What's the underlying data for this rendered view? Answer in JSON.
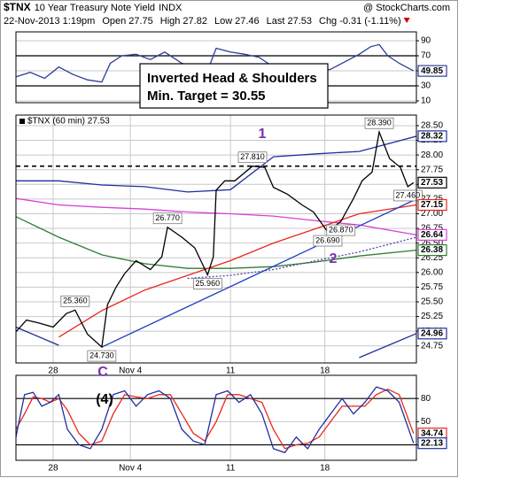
{
  "header": {
    "symbol": "$TNX",
    "name": "10 Year Treasury Note Yield",
    "exchange": "INDX",
    "datetime": "22-Nov-2013 1:19pm",
    "fields": [
      {
        "label": "Open",
        "value": 27.75
      },
      {
        "label": "High",
        "value": 27.82
      },
      {
        "label": "Low",
        "value": 27.46
      },
      {
        "label": "Last",
        "value": 27.53
      },
      {
        "label": "Chg",
        "value": -0.31
      }
    ],
    "change_pct": "(-1.11%)",
    "watermark": "@ StockCharts.com"
  },
  "callout": [
    "Inverted Head & Shoulders",
    "Min. Target = 30.55"
  ],
  "wave_labels": [
    "1",
    "2",
    "(4)",
    "C"
  ],
  "chart_data": [
    {
      "type": "line",
      "xlim": [
        0,
        140
      ],
      "ylim": [
        7.6,
        101.8
      ],
      "yticks": [
        90,
        70,
        50,
        30,
        10
      ],
      "band": [
        30,
        70
      ],
      "grid": true,
      "series": [
        {
          "color": "#2a3f9a",
          "x": [
            0,
            5,
            10,
            15,
            20,
            25,
            30,
            33,
            37,
            42,
            47,
            52,
            58,
            63,
            67,
            70,
            75,
            80,
            85,
            90,
            95,
            100,
            105,
            110,
            115,
            120,
            124,
            127,
            130,
            134,
            139
          ],
          "values": [
            42,
            48,
            40,
            55,
            45,
            38,
            35,
            60,
            70,
            72,
            65,
            75,
            60,
            55,
            50,
            80,
            75,
            72,
            68,
            55,
            50,
            45,
            48,
            52,
            62,
            72,
            82,
            85,
            70,
            60,
            49.85
          ]
        }
      ],
      "last_values": [
        {
          "value": 49.85,
          "color": "#2a3f9a"
        }
      ]
    },
    {
      "type": "line",
      "title": "$TNX (60 min) 27.53",
      "xlim": [
        0,
        140
      ],
      "ylim": [
        24.46,
        28.68
      ],
      "grid": true,
      "xticks": [
        {
          "value": 13,
          "label": "28"
        },
        {
          "value": 40,
          "label": "Nov 4"
        },
        {
          "value": 75,
          "label": "11"
        },
        {
          "value": 108,
          "label": "18"
        }
      ],
      "yticks": [
        {
          "value": 24.75,
          "label": "24.75"
        },
        {
          "value": 25,
          "label": "25.00"
        },
        {
          "value": 25.25,
          "label": "25.25"
        },
        {
          "value": 25.5,
          "label": "25.50"
        },
        {
          "value": 25.75,
          "label": "25.75"
        },
        {
          "value": 26,
          "label": "26.00"
        },
        {
          "value": 26.25,
          "label": "26.25"
        },
        {
          "value": 26.5,
          "label": "26.50"
        },
        {
          "value": 26.75,
          "label": "26.75"
        },
        {
          "value": 27,
          "label": "27.00"
        },
        {
          "value": 27.25,
          "label": "27.25"
        },
        {
          "value": 27.5,
          "label": "27.50"
        },
        {
          "value": 27.75,
          "label": "27.75"
        },
        {
          "value": 28,
          "label": "28.00"
        },
        {
          "value": 28.25,
          "label": "28.25"
        },
        {
          "value": 28.5,
          "label": "28.50"
        }
      ],
      "series": [
        {
          "color": "#1f2f9f",
          "x": [
            0,
            15,
            30,
            45,
            60,
            75,
            90,
            105,
            120,
            140
          ],
          "values": [
            27.56,
            27.56,
            27.49,
            27.46,
            27.37,
            27.41,
            27.97,
            28.02,
            28.06,
            28.32
          ]
        },
        {
          "color": "#1f2f9f",
          "x": [
            0,
            15,
            30,
            45,
            60,
            75,
            90,
            105,
            120,
            140
          ],
          "values": [
            25.07,
            24.76,
            null,
            null,
            null,
            null,
            null,
            null,
            24.55,
            24.96
          ]
        },
        {
          "color": "#d83fd8",
          "x": [
            0,
            15,
            30,
            45,
            60,
            75,
            90,
            105,
            120,
            140
          ],
          "values": [
            27.26,
            27.15,
            27.11,
            27.08,
            27.03,
            27.0,
            26.96,
            26.88,
            26.81,
            26.64
          ]
        },
        {
          "color": "#2e7d32",
          "x": [
            0,
            15,
            30,
            45,
            60,
            75,
            90,
            105,
            120,
            140
          ],
          "values": [
            26.95,
            26.6,
            26.3,
            26.15,
            26.07,
            26.07,
            26.1,
            26.18,
            26.28,
            26.38
          ]
        },
        {
          "color": "#e8281e",
          "x": [
            0,
            15,
            30,
            45,
            60,
            75,
            90,
            105,
            120,
            140
          ],
          "values": [
            null,
            24.9,
            25.35,
            25.7,
            25.95,
            26.2,
            26.5,
            26.75,
            27.0,
            27.15
          ]
        },
        {
          "color": "#5a3fb0",
          "dashed": true,
          "x": [
            60,
            75,
            90,
            105,
            120,
            140
          ],
          "values": [
            25.9,
            25.95,
            26.05,
            26.2,
            26.35,
            26.6
          ]
        },
        {
          "color": "#2040c0",
          "x": [
            30,
            140
          ],
          "values": [
            24.73,
            27.25
          ]
        },
        {
          "color": "#000000",
          "x": [
            0,
            3.7,
            8,
            13,
            17.6,
            20.7,
            25,
            30,
            32,
            35,
            38,
            42,
            47,
            51,
            53,
            58,
            62.5,
            67,
            69,
            70,
            73,
            76.5,
            82.7,
            87,
            90,
            95,
            100,
            104,
            109,
            113.6,
            118,
            121,
            124.5,
            127,
            130.6,
            134.4,
            137,
            139
          ],
          "values": [
            24.99,
            25.19,
            25.14,
            25.07,
            25.3,
            25.36,
            24.95,
            24.73,
            25.45,
            25.75,
            25.98,
            26.2,
            26.05,
            26.27,
            26.77,
            26.6,
            26.42,
            25.96,
            26.27,
            27.4,
            27.56,
            27.56,
            27.81,
            27.79,
            27.45,
            27.33,
            27.15,
            27.03,
            26.69,
            26.87,
            27.26,
            27.56,
            27.71,
            28.39,
            27.94,
            27.79,
            27.46,
            27.53
          ]
        }
      ],
      "hlines": [
        {
          "value": 27.81,
          "color": "#000000"
        }
      ],
      "annotations": [
        {
          "x": 20.7,
          "value": 25.36,
          "label": "25.360"
        },
        {
          "x": 30,
          "value": 24.73,
          "label": "24.730"
        },
        {
          "x": 53,
          "value": 26.77,
          "label": "26.770"
        },
        {
          "x": 67,
          "value": 25.96,
          "label": "25.960"
        },
        {
          "x": 82.7,
          "value": 27.81,
          "label": "27.810"
        },
        {
          "x": 109,
          "value": 26.69,
          "label": "26.690"
        },
        {
          "x": 113.6,
          "value": 26.87,
          "label": "26.870"
        },
        {
          "x": 127,
          "value": 28.39,
          "label": "28.390"
        },
        {
          "x": 137,
          "value": 27.46,
          "label": "27.460"
        }
      ],
      "last_values": [
        {
          "value": 28.32,
          "color": "#1f2f9f"
        },
        {
          "value": 27.53,
          "color": "#000000"
        },
        {
          "value": 27.15,
          "color": "#e8281e"
        },
        {
          "value": 26.64,
          "color": "#d83fd8"
        },
        {
          "value": 26.38,
          "color": "#2e7d32"
        },
        {
          "value": 24.96,
          "color": "#1f2f9f"
        }
      ]
    },
    {
      "type": "line",
      "xlim": [
        0,
        140
      ],
      "ylim": [
        0,
        110
      ],
      "yticks": [
        20,
        50,
        80
      ],
      "band": [
        20,
        80
      ],
      "grid": true,
      "xticks": [
        {
          "value": 13,
          "label": "28"
        },
        {
          "value": 40,
          "label": "Nov 4"
        },
        {
          "value": 75,
          "label": "11"
        },
        {
          "value": 108,
          "label": "18"
        }
      ],
      "series": [
        {
          "color": "#e8281e",
          "x": [
            0,
            3,
            6,
            9,
            12,
            15,
            18,
            22,
            26,
            30,
            34,
            38,
            42,
            46,
            50,
            54,
            58,
            62,
            66,
            70,
            74,
            78,
            82,
            86,
            90,
            94,
            98,
            102,
            106,
            110,
            114,
            118,
            122,
            126,
            130,
            134,
            139
          ],
          "values": [
            40,
            60,
            82,
            80,
            75,
            80,
            65,
            35,
            20,
            25,
            60,
            85,
            82,
            80,
            85,
            85,
            60,
            35,
            25,
            50,
            85,
            85,
            80,
            75,
            40,
            15,
            20,
            22,
            30,
            50,
            70,
            70,
            70,
            85,
            92,
            85,
            34.74
          ]
        },
        {
          "color": "#1f2f9f",
          "x": [
            0,
            3,
            6,
            9,
            12,
            15,
            18,
            22,
            26,
            30,
            34,
            38,
            42,
            46,
            50,
            54,
            58,
            62,
            66,
            70,
            74,
            78,
            82,
            86,
            90,
            94,
            98,
            102,
            106,
            110,
            114,
            118,
            122,
            126,
            130,
            134,
            139
          ],
          "values": [
            30,
            85,
            88,
            70,
            75,
            85,
            40,
            20,
            15,
            40,
            85,
            90,
            70,
            85,
            90,
            80,
            40,
            25,
            20,
            85,
            90,
            75,
            85,
            60,
            15,
            10,
            30,
            15,
            40,
            60,
            80,
            60,
            75,
            95,
            90,
            75,
            22.13
          ]
        }
      ],
      "last_values": [
        {
          "value": 34.74,
          "color": "#e8281e"
        },
        {
          "value": 22.13,
          "color": "#1f2f9f"
        }
      ]
    }
  ]
}
